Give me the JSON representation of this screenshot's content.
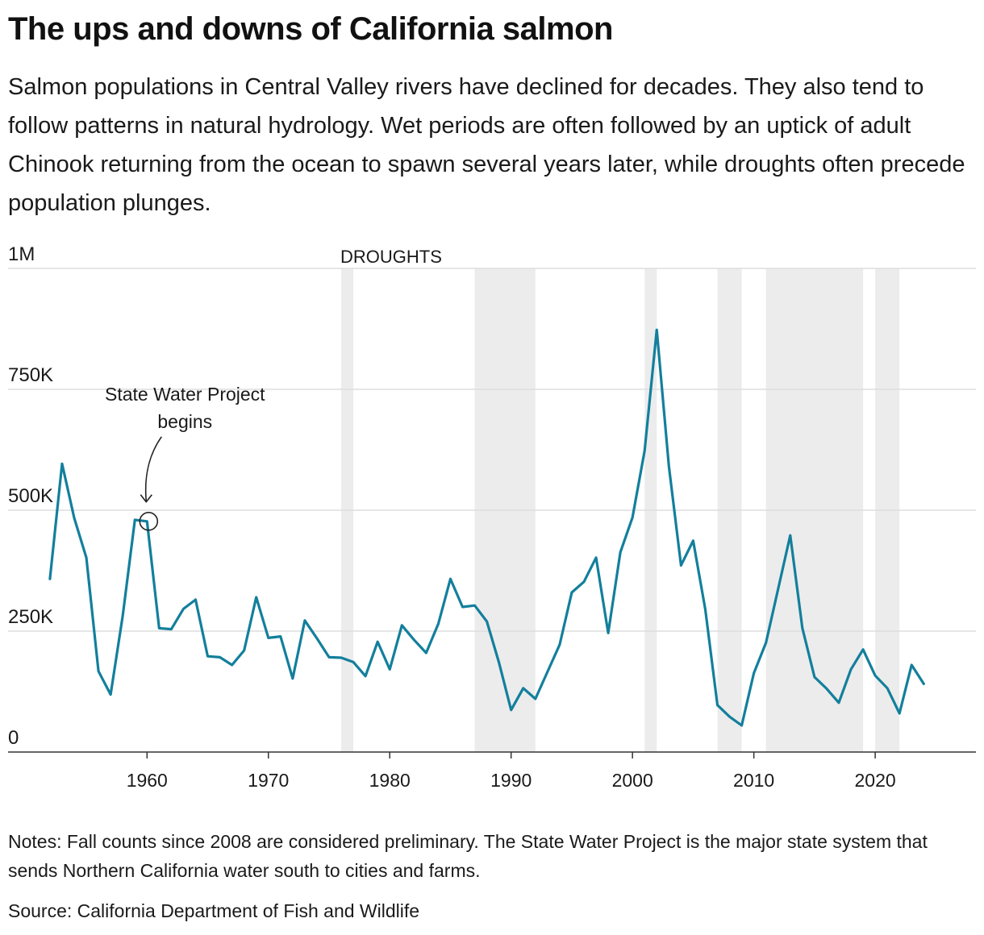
{
  "title": "The ups and downs of California salmon",
  "subtitle": "Salmon populations in Central Valley rivers have declined for decades. They also tend to follow patterns in natural hydrology. Wet periods are often followed by an uptick of adult Chinook returning from the ocean to spawn several years later, while droughts often precede population plunges.",
  "notes": "Notes: Fall counts since 2008 are considered preliminary. The State Water Project is the major state system that sends Northern California water south to cities and farms.",
  "source": "Source: California Department of Fish and Wildlife",
  "colors": {
    "line": "#137f9c",
    "drought_band": "#ececec",
    "grid": "#dddddd",
    "axis": "#333333",
    "text": "#1a1a1a"
  },
  "chart_data": {
    "type": "line",
    "title": "",
    "xlabel": "",
    "ylabel": "",
    "xlim": [
      1948.55,
      2028.3
    ],
    "ylim": [
      0,
      1000000
    ],
    "grid": true,
    "x_ticks": [
      1960,
      1970,
      1980,
      1990,
      2000,
      2010,
      2020
    ],
    "y_ticks": [
      {
        "value": 0,
        "label": "0"
      },
      {
        "value": 250000,
        "label": "250K"
      },
      {
        "value": 500000,
        "label": "500K"
      },
      {
        "value": 750000,
        "label": "750K"
      },
      {
        "value": 1000000,
        "label": "1M"
      }
    ],
    "drought_label": "DROUGHTS",
    "droughts": [
      {
        "start": 1976,
        "end": 1977
      },
      {
        "start": 1987,
        "end": 1992
      },
      {
        "start": 2001,
        "end": 2002
      },
      {
        "start": 2007,
        "end": 2009
      },
      {
        "start": 2011,
        "end": 2019
      },
      {
        "start": 2020,
        "end": 2022
      }
    ],
    "annotation": {
      "text_lines": [
        "State Water Project",
        "begins"
      ],
      "year": 1960,
      "value": 477000
    },
    "series": [
      {
        "values": [
          {
            "year": 1952,
            "value": 358000
          },
          {
            "year": 1953,
            "value": 596000
          },
          {
            "year": 1954,
            "value": 484000
          },
          {
            "year": 1955,
            "value": 402000
          },
          {
            "year": 1956,
            "value": 167000
          },
          {
            "year": 1957,
            "value": 119000
          },
          {
            "year": 1958,
            "value": 282000
          },
          {
            "year": 1959,
            "value": 480000
          },
          {
            "year": 1960,
            "value": 477000
          },
          {
            "year": 1961,
            "value": 256000
          },
          {
            "year": 1962,
            "value": 254000
          },
          {
            "year": 1963,
            "value": 296000
          },
          {
            "year": 1964,
            "value": 315000
          },
          {
            "year": 1965,
            "value": 198000
          },
          {
            "year": 1966,
            "value": 196000
          },
          {
            "year": 1967,
            "value": 180000
          },
          {
            "year": 1968,
            "value": 210000
          },
          {
            "year": 1969,
            "value": 320000
          },
          {
            "year": 1970,
            "value": 236000
          },
          {
            "year": 1971,
            "value": 239000
          },
          {
            "year": 1972,
            "value": 152000
          },
          {
            "year": 1973,
            "value": 272000
          },
          {
            "year": 1974,
            "value": 235000
          },
          {
            "year": 1975,
            "value": 196000
          },
          {
            "year": 1976,
            "value": 195000
          },
          {
            "year": 1977,
            "value": 186000
          },
          {
            "year": 1978,
            "value": 157000
          },
          {
            "year": 1979,
            "value": 228000
          },
          {
            "year": 1980,
            "value": 171000
          },
          {
            "year": 1981,
            "value": 262000
          },
          {
            "year": 1982,
            "value": 232000
          },
          {
            "year": 1983,
            "value": 205000
          },
          {
            "year": 1984,
            "value": 265000
          },
          {
            "year": 1985,
            "value": 358000
          },
          {
            "year": 1986,
            "value": 300000
          },
          {
            "year": 1987,
            "value": 303000
          },
          {
            "year": 1988,
            "value": 270000
          },
          {
            "year": 1989,
            "value": 185000
          },
          {
            "year": 1990,
            "value": 87000
          },
          {
            "year": 1991,
            "value": 132000
          },
          {
            "year": 1992,
            "value": 110000
          },
          {
            "year": 1993,
            "value": 166000
          },
          {
            "year": 1994,
            "value": 222000
          },
          {
            "year": 1995,
            "value": 330000
          },
          {
            "year": 1996,
            "value": 352000
          },
          {
            "year": 1997,
            "value": 402000
          },
          {
            "year": 1998,
            "value": 246000
          },
          {
            "year": 1999,
            "value": 413000
          },
          {
            "year": 2000,
            "value": 485000
          },
          {
            "year": 2001,
            "value": 623000
          },
          {
            "year": 2002,
            "value": 873000
          },
          {
            "year": 2003,
            "value": 591000
          },
          {
            "year": 2004,
            "value": 386000
          },
          {
            "year": 2005,
            "value": 437000
          },
          {
            "year": 2006,
            "value": 295000
          },
          {
            "year": 2007,
            "value": 97000
          },
          {
            "year": 2008,
            "value": 73000
          },
          {
            "year": 2009,
            "value": 55000
          },
          {
            "year": 2010,
            "value": 163000
          },
          {
            "year": 2011,
            "value": 226000
          },
          {
            "year": 2012,
            "value": 337000
          },
          {
            "year": 2013,
            "value": 448000
          },
          {
            "year": 2014,
            "value": 256000
          },
          {
            "year": 2015,
            "value": 155000
          },
          {
            "year": 2016,
            "value": 131000
          },
          {
            "year": 2017,
            "value": 102000
          },
          {
            "year": 2018,
            "value": 171000
          },
          {
            "year": 2019,
            "value": 212000
          },
          {
            "year": 2020,
            "value": 158000
          },
          {
            "year": 2021,
            "value": 132000
          },
          {
            "year": 2022,
            "value": 80000
          },
          {
            "year": 2023,
            "value": 180000
          },
          {
            "year": 2024,
            "value": 141000
          }
        ]
      }
    ]
  }
}
